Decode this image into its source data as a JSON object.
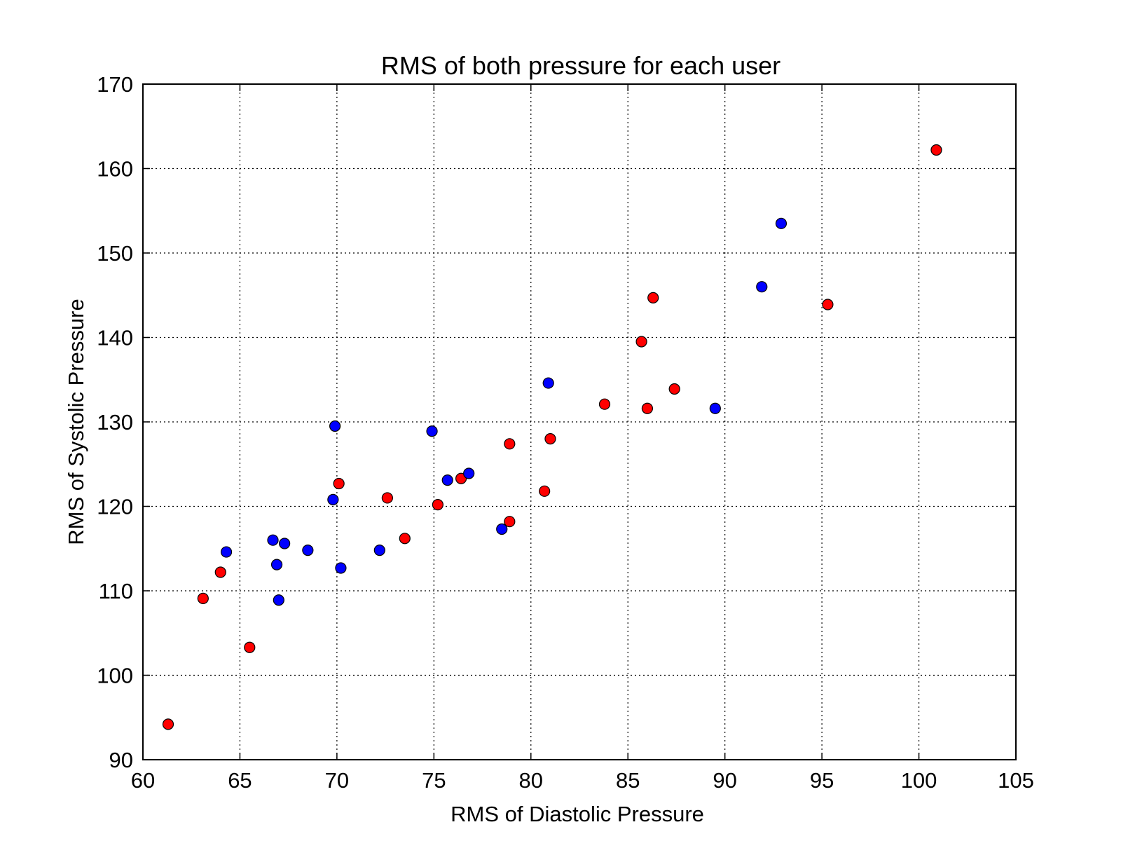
{
  "chart_data": {
    "type": "scatter",
    "title": "RMS of both pressure for each user",
    "xlabel": "RMS of Diastolic Pressure",
    "ylabel": "RMS of Systolic Pressure",
    "xlim": [
      60,
      105
    ],
    "ylim": [
      90,
      170
    ],
    "xticks": [
      60,
      65,
      70,
      75,
      80,
      85,
      90,
      95,
      100,
      105
    ],
    "yticks": [
      90,
      100,
      110,
      120,
      130,
      140,
      150,
      160,
      170
    ],
    "grid": true,
    "series": [
      {
        "color": "#ff0000",
        "points": [
          {
            "x": 61.3,
            "y": 94.2
          },
          {
            "x": 63.1,
            "y": 109.1
          },
          {
            "x": 64.0,
            "y": 112.2
          },
          {
            "x": 65.5,
            "y": 103.3
          },
          {
            "x": 70.1,
            "y": 122.7
          },
          {
            "x": 72.6,
            "y": 121.0
          },
          {
            "x": 73.5,
            "y": 116.2
          },
          {
            "x": 75.2,
            "y": 120.2
          },
          {
            "x": 76.4,
            "y": 123.3
          },
          {
            "x": 78.9,
            "y": 127.4
          },
          {
            "x": 78.9,
            "y": 118.2
          },
          {
            "x": 80.7,
            "y": 121.8
          },
          {
            "x": 81.0,
            "y": 128.0
          },
          {
            "x": 83.8,
            "y": 132.1
          },
          {
            "x": 85.7,
            "y": 139.5
          },
          {
            "x": 86.0,
            "y": 131.6
          },
          {
            "x": 86.3,
            "y": 144.7
          },
          {
            "x": 87.4,
            "y": 133.9
          },
          {
            "x": 95.3,
            "y": 143.9
          },
          {
            "x": 100.9,
            "y": 162.2
          }
        ]
      },
      {
        "color": "#0000ff",
        "points": [
          {
            "x": 64.3,
            "y": 114.6
          },
          {
            "x": 66.7,
            "y": 116.0
          },
          {
            "x": 66.9,
            "y": 113.1
          },
          {
            "x": 67.0,
            "y": 108.9
          },
          {
            "x": 67.3,
            "y": 115.6
          },
          {
            "x": 68.5,
            "y": 114.8
          },
          {
            "x": 69.8,
            "y": 120.8
          },
          {
            "x": 69.9,
            "y": 129.5
          },
          {
            "x": 70.2,
            "y": 112.7
          },
          {
            "x": 72.2,
            "y": 114.8
          },
          {
            "x": 74.9,
            "y": 128.9
          },
          {
            "x": 75.7,
            "y": 123.1
          },
          {
            "x": 76.8,
            "y": 123.9
          },
          {
            "x": 78.5,
            "y": 117.3
          },
          {
            "x": 80.9,
            "y": 134.6
          },
          {
            "x": 89.5,
            "y": 131.6
          },
          {
            "x": 91.9,
            "y": 146.0
          },
          {
            "x": 92.9,
            "y": 153.5
          }
        ]
      }
    ]
  }
}
